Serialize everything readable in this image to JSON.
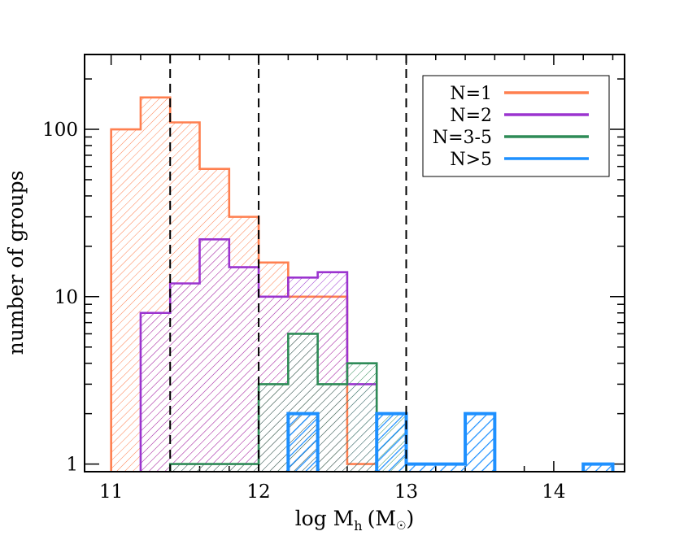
{
  "chart_data": {
    "type": "histogram",
    "title": "",
    "xlabel_main": "log M",
    "xlabel_sub": "h",
    "xlabel_unit": "(M",
    "xlabel_unit_close": ")",
    "ylabel": "number of groups",
    "xlim": [
      10.82,
      14.48
    ],
    "ylim": [
      0.9,
      280
    ],
    "yscale": "log",
    "grid": false,
    "legend_position": "top-right",
    "x_ticks": [
      11,
      12,
      13,
      14
    ],
    "x_tick_labels": [
      "11",
      "12",
      "13",
      "14"
    ],
    "y_ticks": [
      1,
      10,
      100
    ],
    "y_tick_labels": [
      "1",
      "10",
      "100"
    ],
    "vlines": [
      11.4,
      12.0,
      13.0
    ],
    "series": [
      {
        "name": "N=1",
        "color": "#ff7f4f",
        "hatch": "thin",
        "bins": [
          [
            11.0,
            11.2,
            100
          ],
          [
            11.2,
            11.4,
            155
          ],
          [
            11.4,
            11.6,
            110
          ],
          [
            11.6,
            11.8,
            58
          ],
          [
            11.8,
            12.0,
            30
          ],
          [
            12.0,
            12.2,
            16
          ],
          [
            12.2,
            12.6,
            10
          ],
          [
            12.6,
            12.8,
            1
          ]
        ]
      },
      {
        "name": "N=2",
        "color": "#9b34cf",
        "hatch": "thin",
        "bins": [
          [
            11.2,
            11.4,
            8
          ],
          [
            11.4,
            11.6,
            12
          ],
          [
            11.6,
            11.8,
            22
          ],
          [
            11.8,
            12.0,
            15
          ],
          [
            12.0,
            12.2,
            10
          ],
          [
            12.2,
            12.4,
            13
          ],
          [
            12.4,
            12.6,
            14
          ],
          [
            12.6,
            12.8,
            3
          ]
        ]
      },
      {
        "name": "N=3-5",
        "color": "#2e8b57",
        "hatch": "thin",
        "bins": [
          [
            11.4,
            12.0,
            1
          ],
          [
            12.0,
            12.2,
            3
          ],
          [
            12.2,
            12.4,
            6
          ],
          [
            12.4,
            12.6,
            3
          ],
          [
            12.6,
            12.8,
            4
          ],
          [
            12.8,
            13.0,
            2
          ]
        ]
      },
      {
        "name": "N>5",
        "color": "#1e90ff",
        "hatch": "thick",
        "bins": [
          [
            12.2,
            12.4,
            2
          ],
          [
            12.8,
            13.0,
            2
          ],
          [
            13.0,
            13.4,
            1
          ],
          [
            13.4,
            13.6,
            2
          ],
          [
            14.2,
            14.4,
            1
          ]
        ]
      }
    ]
  }
}
